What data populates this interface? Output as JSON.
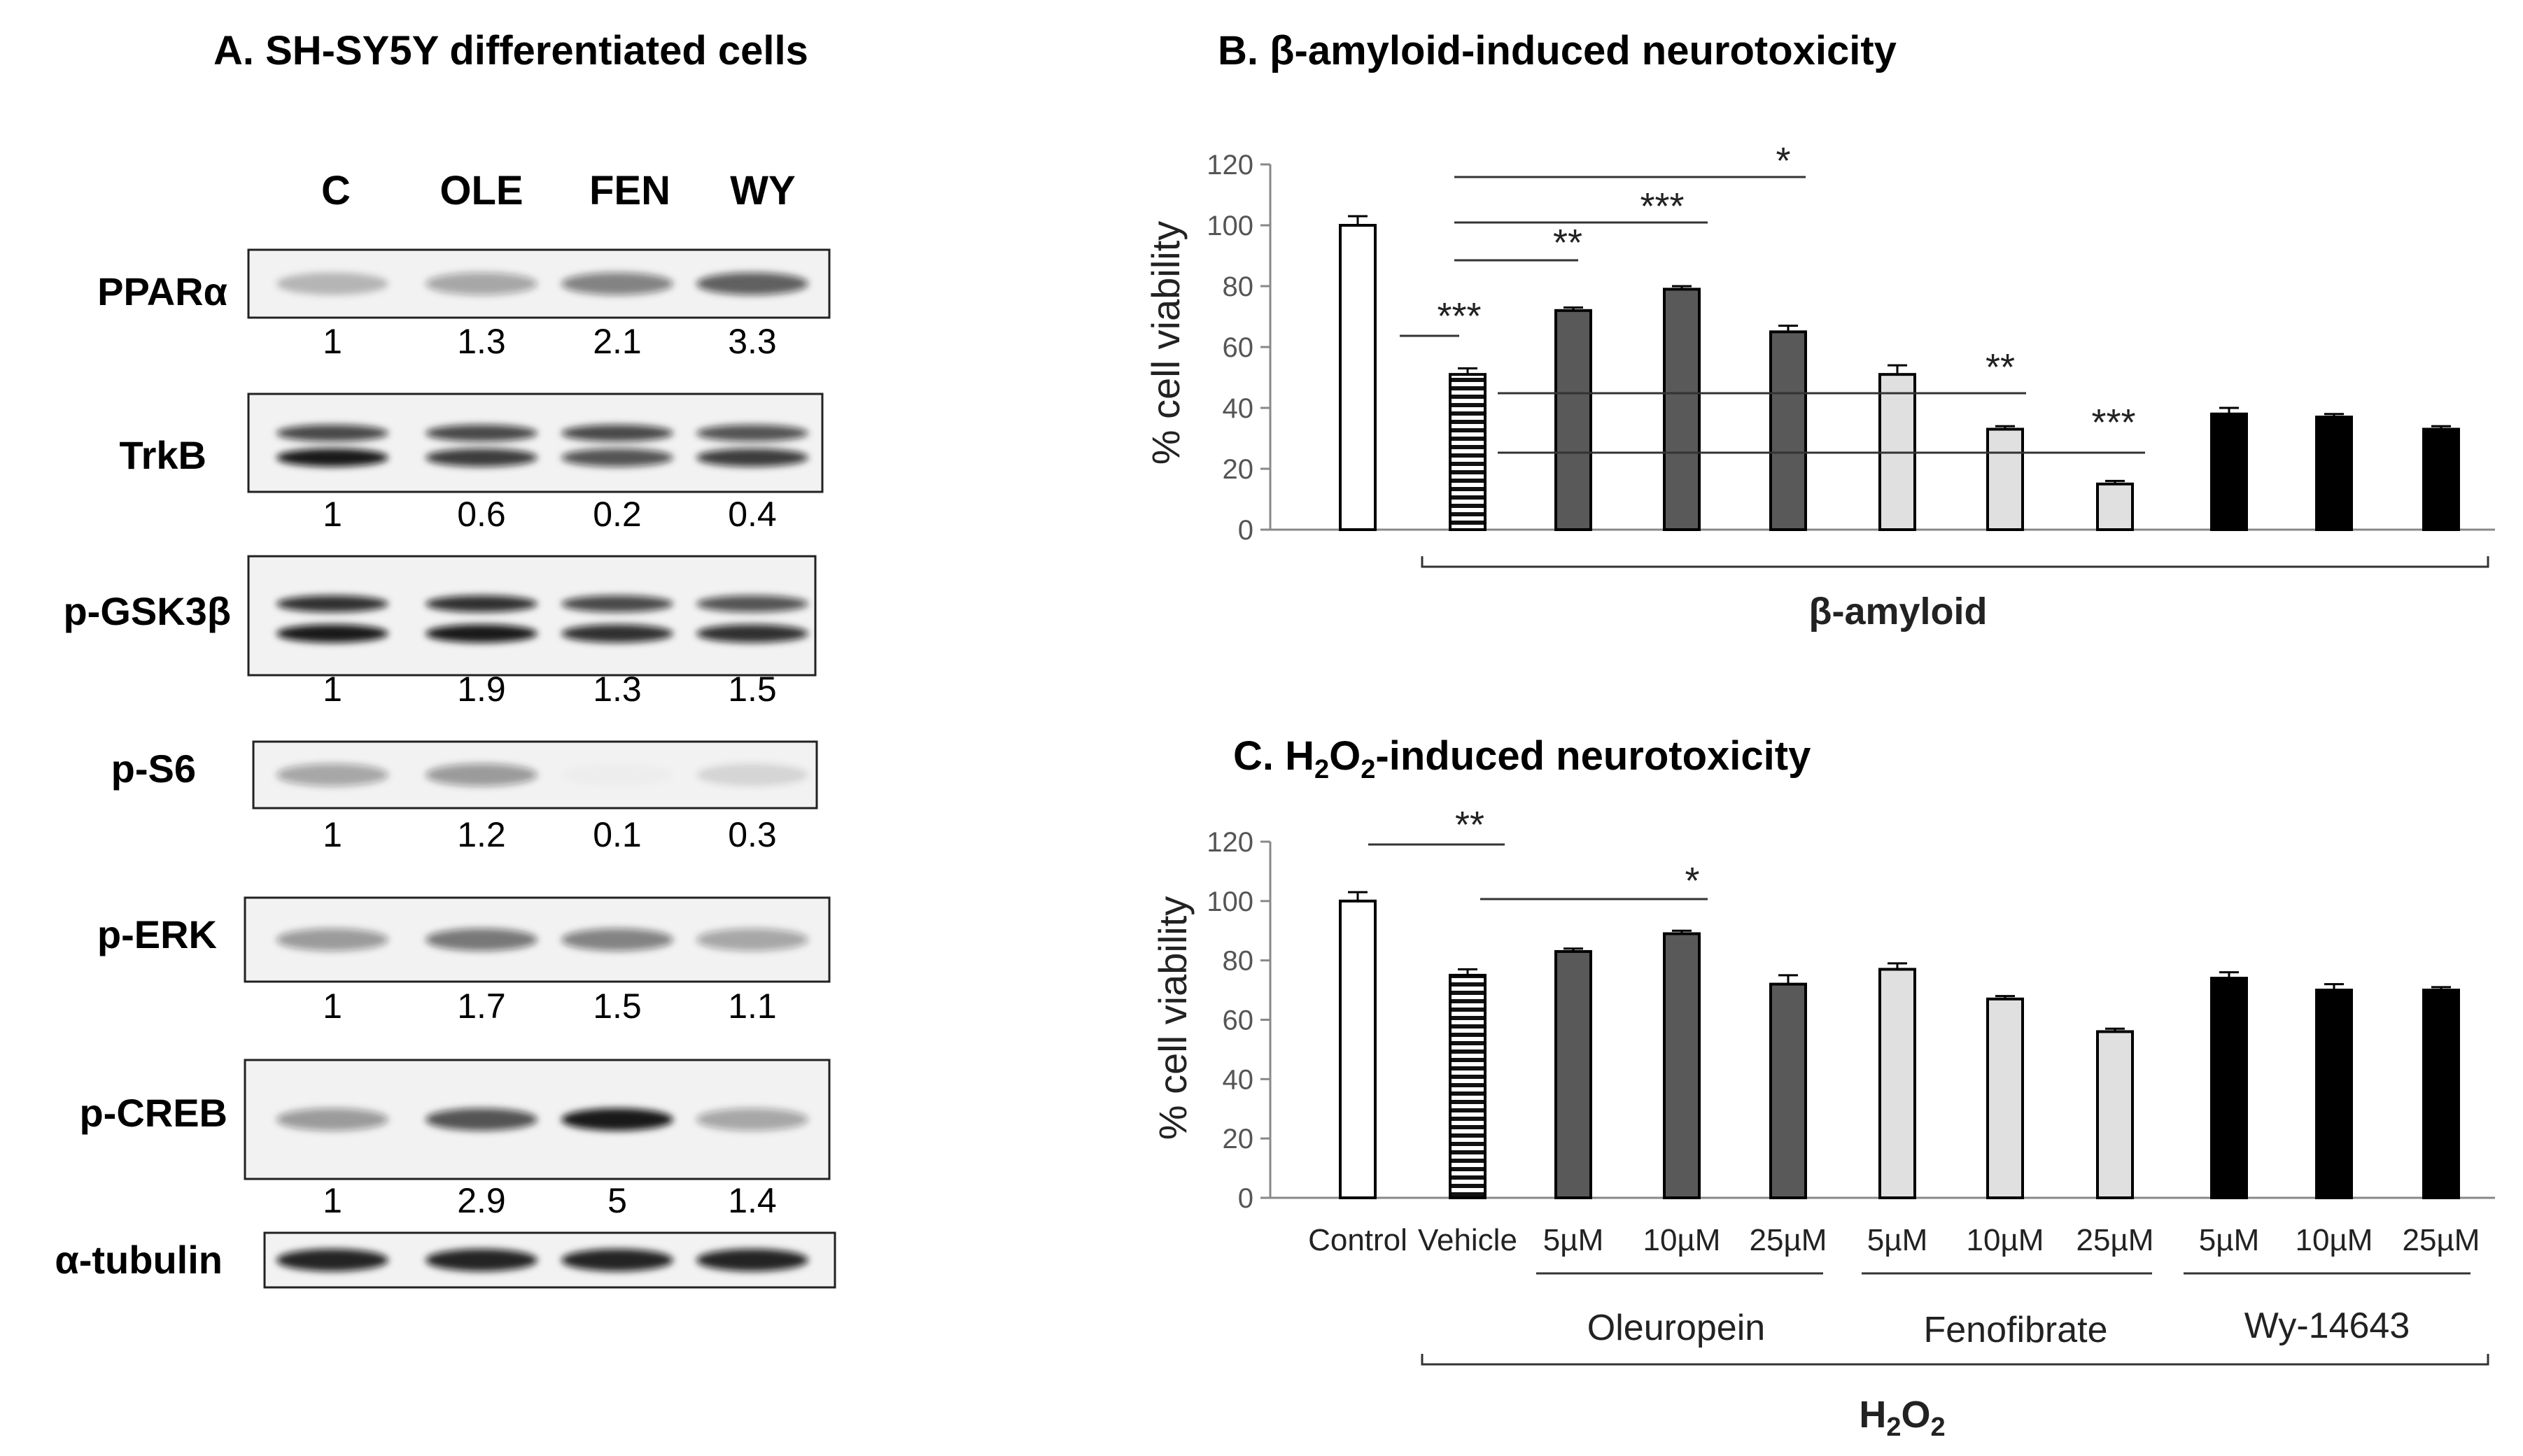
{
  "figure": {
    "panel_a_title": "A. SH-SY5Y differentiated cells",
    "panel_b_title": "B. β-amyloid-induced neurotoxicity",
    "panel_c_title_prefix": "C. H",
    "panel_c_title_sub1": "2",
    "panel_c_title_mid": "O",
    "panel_c_title_sub2": "2",
    "panel_c_title_suffix": "-induced neurotoxicity"
  },
  "blot": {
    "lanes": [
      "C",
      "OLE",
      "FEN",
      "WY"
    ],
    "rows": [
      {
        "label": "PPARα",
        "values": [
          "1",
          "1.3",
          "2.1",
          "3.3"
        ],
        "intensity_upper": [
          0.25,
          0.35,
          0.5,
          0.65
        ],
        "intensity_lower": [
          0,
          0,
          0,
          0
        ]
      },
      {
        "label": "TrkB",
        "values": [
          "1",
          "0.6",
          "0.2",
          "0.4"
        ],
        "intensity_upper": [
          0.75,
          0.75,
          0.75,
          0.7
        ],
        "intensity_lower": [
          0.95,
          0.8,
          0.7,
          0.8
        ]
      },
      {
        "label": "p-GSK3β",
        "values": [
          "1",
          "1.9",
          "1.3",
          "1.5"
        ],
        "intensity_upper": [
          0.85,
          0.85,
          0.75,
          0.7
        ],
        "intensity_lower": [
          0.95,
          0.95,
          0.85,
          0.85
        ]
      },
      {
        "label": "p-S6",
        "values": [
          "1",
          "1.2",
          "0.1",
          "0.3"
        ],
        "intensity_upper": [
          0.35,
          0.4,
          0.02,
          0.12
        ],
        "intensity_lower": [
          0,
          0,
          0,
          0
        ]
      },
      {
        "label": "p-ERK",
        "values": [
          "1",
          "1.7",
          "1.5",
          "1.1"
        ],
        "intensity_upper": [
          0.4,
          0.55,
          0.5,
          0.35
        ],
        "intensity_lower": [
          0,
          0,
          0,
          0
        ]
      },
      {
        "label": "p-CREB",
        "values": [
          "1",
          "2.9",
          "5",
          "1.4"
        ],
        "intensity_upper": [
          0.4,
          0.7,
          0.95,
          0.35
        ],
        "intensity_lower": [
          0,
          0,
          0,
          0
        ]
      },
      {
        "label": "α-tubulin",
        "values": [],
        "intensity_upper": [
          0.9,
          0.9,
          0.9,
          0.9
        ],
        "intensity_lower": [
          0,
          0,
          0,
          0
        ]
      }
    ]
  },
  "chart_data": [
    {
      "type": "bar",
      "title": "B. β-amyloid-induced neurotoxicity",
      "ylabel": "% cell viability",
      "ylim": [
        0,
        120
      ],
      "yticks": [
        "0",
        "20",
        "40",
        "60",
        "80",
        "100",
        "120"
      ],
      "values": [
        100,
        51,
        72,
        79,
        65,
        51,
        33,
        15,
        38,
        37,
        33
      ],
      "errors": [
        3,
        2,
        1,
        1,
        2,
        3,
        1,
        1,
        2,
        1,
        1
      ],
      "fills": [
        "white",
        "striped",
        "#595959",
        "#595959",
        "#595959",
        "#e0e0e0",
        "#e0e0e0",
        "#e0e0e0",
        "#000000",
        "#000000",
        "#000000"
      ],
      "bracket_label": "β-amyloid",
      "significance": [
        "***",
        "**",
        "***",
        "*",
        "**",
        "***"
      ]
    },
    {
      "type": "bar",
      "title": "C. H2O2-induced neurotoxicity",
      "ylabel": "% cell viability",
      "ylim": [
        0,
        120
      ],
      "yticks": [
        "0",
        "20",
        "40",
        "60",
        "80",
        "100",
        "120"
      ],
      "categories": [
        "Control",
        "Vehicle",
        "5µM",
        "10µM",
        "25µM",
        "5µM",
        "10µM",
        "25µM",
        "5µM",
        "10µM",
        "25µM"
      ],
      "values": [
        100,
        75,
        83,
        89,
        72,
        77,
        67,
        56,
        74,
        70,
        70
      ],
      "errors": [
        3,
        2,
        1,
        1,
        3,
        2,
        1,
        1,
        2,
        2,
        1
      ],
      "fills": [
        "white",
        "striped",
        "#595959",
        "#595959",
        "#595959",
        "#e0e0e0",
        "#e0e0e0",
        "#e0e0e0",
        "#000000",
        "#000000",
        "#000000"
      ],
      "groups": [
        "Oleuropein",
        "Fenofibrate",
        "Wy-14643"
      ],
      "bracket_label_main": "H",
      "bracket_label_sub": "2",
      "bracket_label_mid": "O",
      "bracket_label_sub2": "2",
      "significance": [
        "**",
        "*"
      ]
    }
  ]
}
